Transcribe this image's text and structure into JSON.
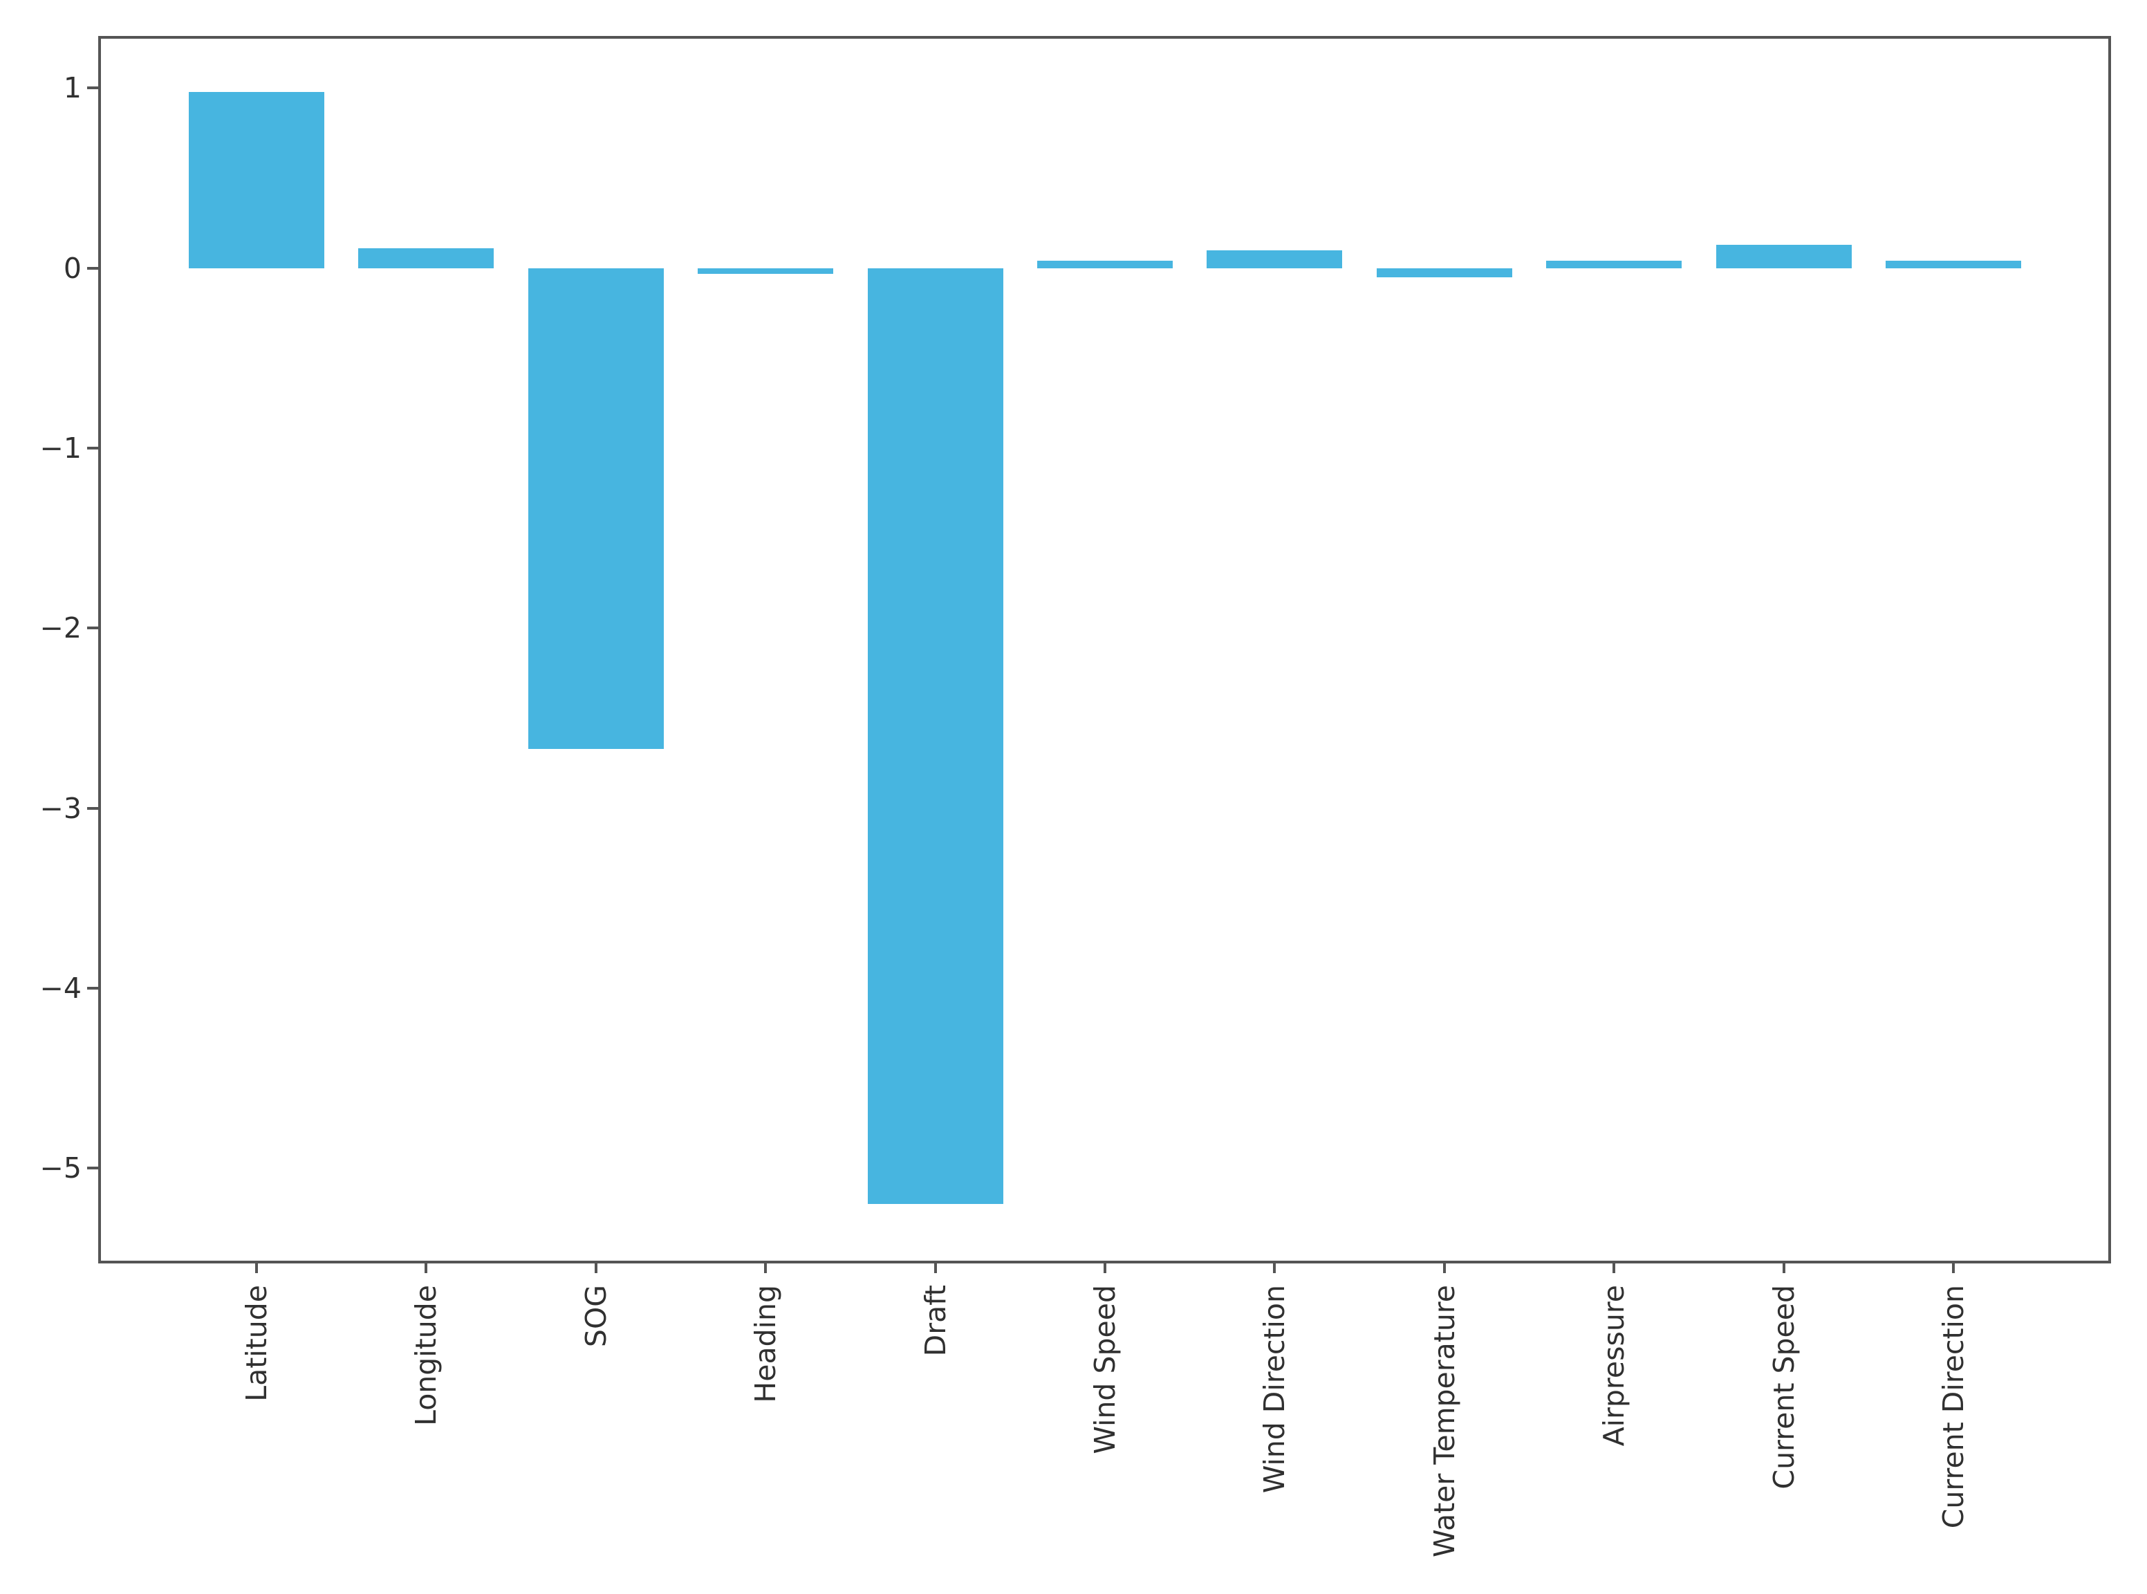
{
  "chart_data": {
    "type": "bar",
    "title": "",
    "xlabel": "",
    "ylabel": "",
    "categories": [
      "Latitude",
      "Longitude",
      "SOG",
      "Heading",
      "Draft",
      "Wind Speed",
      "Wind Direction",
      "Water Temperature",
      "Airpressure",
      "Current Speed",
      "Current Direction"
    ],
    "values": [
      0.98,
      0.11,
      -2.67,
      -0.03,
      -5.2,
      0.04,
      0.1,
      -0.05,
      0.04,
      0.13,
      0.04
    ],
    "ytick_labels": [
      "1",
      "0",
      "−1",
      "−2",
      "−3",
      "−4",
      "−5"
    ],
    "ytick_values": [
      1,
      0,
      -1,
      -2,
      -3,
      -4,
      -5
    ],
    "ylim": [
      -5.53,
      1.29
    ],
    "grid": false,
    "legend_position": "none",
    "bar_color": "#47b5e0",
    "axis_color": "#555555",
    "tick_label_color": "#303030",
    "background_color": "#ffffff"
  }
}
